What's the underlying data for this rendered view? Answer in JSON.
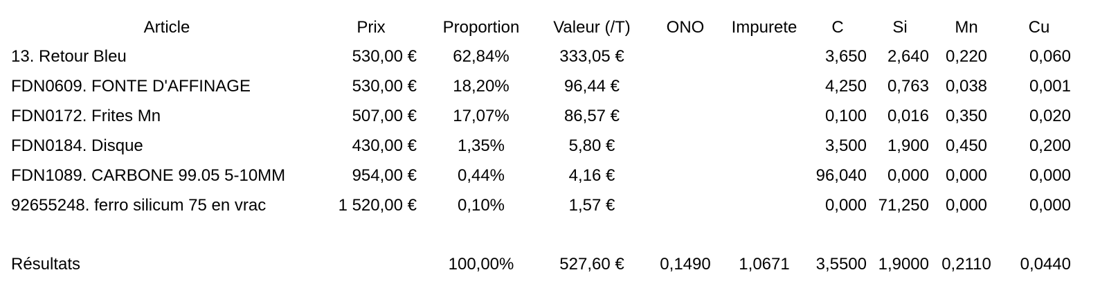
{
  "headers": {
    "article": "Article",
    "prix": "Prix",
    "proportion": "Proportion",
    "valeur": "Valeur (/T)",
    "ono": "ONO",
    "impurete": "Impurete",
    "c": "C",
    "si": "Si",
    "mn": "Mn",
    "cu": "Cu"
  },
  "rows": [
    {
      "article": "13. Retour Bleu",
      "prix": "530,00 €",
      "proportion": "62,84%",
      "valeur": "333,05 €",
      "c": "3,650",
      "si": "2,640",
      "mn": "0,220",
      "cu": "0,060"
    },
    {
      "article": "FDN0609. FONTE D'AFFINAGE",
      "prix": "530,00 €",
      "proportion": "18,20%",
      "valeur": "96,44 €",
      "c": "4,250",
      "si": "0,763",
      "mn": "0,038",
      "cu": "0,001"
    },
    {
      "article": "FDN0172. Frites Mn",
      "prix": "507,00 €",
      "proportion": "17,07%",
      "valeur": "86,57 €",
      "c": "0,100",
      "si": "0,016",
      "mn": "0,350",
      "cu": "0,020"
    },
    {
      "article": "FDN0184. Disque",
      "prix": "430,00 €",
      "proportion": "1,35%",
      "valeur": "5,80 €",
      "c": "3,500",
      "si": "1,900",
      "mn": "0,450",
      "cu": "0,200"
    },
    {
      "article": "FDN1089. CARBONE 99.05 5-10MM",
      "prix": "954,00 €",
      "proportion": "0,44%",
      "valeur": "4,16 €",
      "c": "96,040",
      "si": "0,000",
      "mn": "0,000",
      "cu": "0,000"
    },
    {
      "article": "92655248. ferro silicum 75 en vrac",
      "prix": "1 520,00 €",
      "proportion": "0,10%",
      "valeur": "1,57 €",
      "c": "0,000",
      "si": "71,250",
      "mn": "0,000",
      "cu": "0,000"
    }
  ],
  "results": {
    "label": "Résultats",
    "proportion": "100,00%",
    "valeur": "527,60 €",
    "ono": "0,1490",
    "impurete": "1,0671",
    "c": "3,5500",
    "si": "1,9000",
    "mn": "0,2110",
    "cu": "0,0440"
  }
}
